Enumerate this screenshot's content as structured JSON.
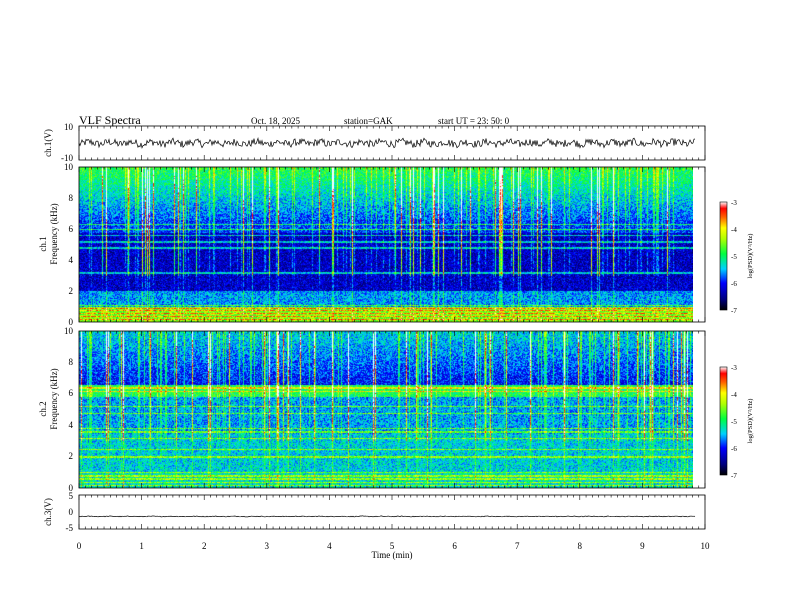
{
  "header": {
    "title": "VLF  Spectra",
    "date": "Oct. 18, 2025",
    "station": "station=GAK",
    "start": "start  UT  =    23: 50: 0"
  },
  "chart_data": [
    {
      "type": "line",
      "ylabel": "ch.1(V)",
      "ylim": [
        -10,
        10
      ],
      "yticks": [
        "10",
        "-10"
      ],
      "level": 0,
      "noise": 2.2
    },
    {
      "type": "heatmap",
      "ylabel_line1": "ch.1",
      "ylabel_line2": "Frequency (kHz)",
      "ylim": [
        0,
        10
      ],
      "yticks": [
        "0",
        "2",
        "4",
        "6",
        "8",
        "10"
      ],
      "colorbar": {
        "label": "log(PSD)(V²/Hz)",
        "range": [
          -7,
          -3
        ],
        "ticks": [
          "-3",
          "-4",
          "-5",
          "-6",
          "-7"
        ]
      }
    },
    {
      "type": "heatmap",
      "ylabel_line1": "ch.2",
      "ylabel_line2": "Frequency (kHz)",
      "ylim": [
        0,
        10
      ],
      "yticks": [
        "0",
        "2",
        "4",
        "6",
        "8",
        "10"
      ],
      "colorbar": {
        "label": "log(PSD)(V²/Hz)",
        "range": [
          -7,
          -3
        ],
        "ticks": [
          "-3",
          "-4",
          "-5",
          "-6",
          "-7"
        ]
      }
    },
    {
      "type": "line",
      "ylabel": "ch.3(V)",
      "ylim": [
        -5,
        5
      ],
      "yticks": [
        "5",
        "0",
        "-5"
      ],
      "level": -1.3,
      "noise": 0.12
    }
  ],
  "xaxis": {
    "xlabel": "Time  (min)",
    "xlim": [
      0,
      10
    ],
    "data_end": 9.85,
    "ticks": [
      "0",
      "1",
      "2",
      "3",
      "4",
      "5",
      "6",
      "7",
      "8",
      "9",
      "10"
    ]
  }
}
